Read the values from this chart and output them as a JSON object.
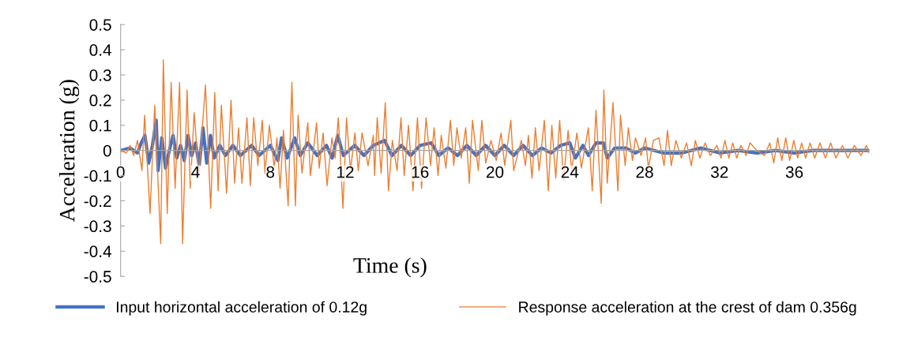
{
  "chart_data": {
    "type": "line",
    "xlabel": "Time (s)",
    "ylabel": "Acceleration (g)",
    "xlim": [
      0,
      40
    ],
    "xticks": [
      0,
      4,
      8,
      12,
      16,
      20,
      24,
      28,
      32,
      36
    ],
    "ylim": [
      -0.5,
      0.5
    ],
    "yticks": [
      -0.5,
      -0.4,
      -0.3,
      -0.2,
      -0.1,
      0,
      0.1,
      0.2,
      0.3,
      0.4,
      0.5
    ],
    "grid": false,
    "legend": "bottom",
    "line_style": "solid",
    "marker": "none",
    "series": [
      {
        "name": "Input horizontal acceleration of 0.12g",
        "color": "#4472c4",
        "x": [
          0,
          0.5,
          0.9,
          1.1,
          1.3,
          1.5,
          1.7,
          1.9,
          2.0,
          2.2,
          2.4,
          2.6,
          2.8,
          3.0,
          3.2,
          3.4,
          3.6,
          3.8,
          4.0,
          4.2,
          4.4,
          4.6,
          4.8,
          5.0,
          5.3,
          5.6,
          6,
          6.4,
          7,
          7.4,
          8,
          8.4,
          8.6,
          8.9,
          9.3,
          9.6,
          10,
          10.5,
          11,
          11.3,
          11.6,
          11.9,
          12.5,
          13,
          13.5,
          14.1,
          14.5,
          15,
          15.5,
          16,
          16.6,
          17,
          17.5,
          18,
          18.5,
          19,
          19.5,
          20,
          20.5,
          21,
          21.5,
          22,
          22.5,
          23,
          23.5,
          24,
          24.3,
          24.7,
          25,
          25.4,
          25.8,
          26.0,
          26.4,
          27,
          27.5,
          28,
          29,
          30,
          31,
          32,
          33,
          34,
          35,
          36,
          37,
          38,
          39,
          40
        ],
        "values": [
          0,
          0.01,
          -0.01,
          0.03,
          0.06,
          -0.05,
          0.02,
          0.12,
          -0.08,
          0.05,
          -0.07,
          0.0,
          0.06,
          -0.03,
          0.02,
          -0.04,
          0.06,
          -0.02,
          0.03,
          -0.06,
          0.09,
          -0.05,
          0.06,
          -0.03,
          0.02,
          -0.02,
          0.02,
          -0.02,
          0.02,
          -0.02,
          0.02,
          -0.04,
          0.05,
          -0.03,
          0.05,
          -0.02,
          0.03,
          -0.02,
          0.02,
          -0.03,
          0.06,
          -0.02,
          0.02,
          -0.02,
          0.02,
          0.04,
          -0.02,
          0.02,
          -0.02,
          0.02,
          0.03,
          -0.02,
          0.01,
          -0.02,
          0.02,
          -0.02,
          0.02,
          -0.02,
          0.02,
          -0.02,
          0.02,
          -0.02,
          0.01,
          -0.01,
          0.02,
          0.03,
          -0.03,
          0.02,
          -0.02,
          0.03,
          0.03,
          -0.03,
          0.01,
          0.01,
          -0.01,
          0.01,
          -0.01,
          -0.01,
          0.01,
          -0.01,
          0.0,
          -0.01,
          0.0,
          -0.01,
          0.0,
          0.0,
          0.0,
          0.0
        ]
      },
      {
        "name": "Response acceleration at the crest of dam 0.356g",
        "color": "#ed7d31",
        "x": [
          0,
          0.3,
          0.5,
          0.7,
          0.9,
          1.14,
          1.28,
          1.57,
          1.82,
          2.14,
          2.28,
          2.49,
          2.7,
          2.91,
          3.15,
          3.31,
          3.55,
          3.72,
          3.93,
          4.18,
          4.53,
          4.81,
          5.03,
          5.21,
          5.38,
          5.66,
          5.9,
          6.09,
          6.3,
          6.48,
          6.75,
          6.93,
          7.11,
          7.33,
          7.57,
          7.71,
          7.95,
          8.21,
          8.35,
          8.52,
          8.7,
          8.95,
          9.15,
          9.34,
          9.48,
          9.69,
          10.0,
          10.14,
          10.47,
          10.61,
          10.82,
          11.03,
          11.29,
          11.46,
          11.63,
          11.88,
          12.07,
          12.28,
          12.52,
          12.7,
          12.9,
          13.22,
          13.5,
          13.57,
          13.71,
          13.92,
          14.14,
          14.31,
          14.52,
          14.77,
          14.98,
          15.15,
          15.38,
          15.62,
          15.86,
          16.08,
          16.32,
          16.56,
          16.75,
          16.96,
          17.13,
          17.38,
          17.62,
          17.8,
          17.97,
          18.2,
          18.44,
          18.63,
          18.8,
          19.11,
          19.3,
          19.51,
          19.79,
          20.07,
          20.33,
          20.52,
          20.85,
          21.0,
          21.41,
          21.63,
          21.79,
          21.98,
          22.16,
          22.36,
          22.64,
          22.85,
          23.04,
          23.25,
          23.46,
          23.67,
          23.91,
          24.1,
          24.38,
          24.62,
          24.99,
          25.2,
          25.4,
          25.68,
          25.82,
          26.0,
          26.31,
          26.57,
          26.71,
          26.96,
          27.13,
          27.35,
          27.51,
          27.81,
          28.05,
          28.2,
          28.47,
          28.76,
          29.04,
          29.22,
          29.42,
          29.67,
          29.96,
          30.24,
          30.49,
          30.71,
          30.95,
          31.23,
          31.51,
          31.86,
          32.08,
          32.29,
          32.5,
          32.71,
          32.92,
          33.14,
          33.42,
          33.63,
          33.99,
          34.41,
          34.69,
          34.9,
          35.11,
          35.33,
          35.54,
          35.75,
          35.97,
          36.18,
          36.39,
          36.6,
          36.84,
          37.09,
          37.37,
          37.66,
          37.94,
          38.22,
          38.57,
          38.86,
          39.21,
          39.56,
          39.85,
          40.0
        ],
        "values": [
          0,
          -0.01,
          0.02,
          -0.02,
          0.04,
          -0.08,
          0.14,
          -0.25,
          0.18,
          -0.37,
          0.36,
          -0.25,
          0.27,
          -0.15,
          0.27,
          -0.37,
          0.24,
          -0.15,
          0.15,
          -0.1,
          0.26,
          -0.23,
          0.23,
          -0.16,
          0.18,
          -0.17,
          0.2,
          -0.13,
          0.09,
          -0.13,
          0.13,
          -0.14,
          0.13,
          -0.06,
          0.12,
          -0.09,
          0.1,
          -0.07,
          0.05,
          -0.15,
          0.08,
          -0.22,
          0.27,
          -0.22,
          0.14,
          -0.09,
          0.11,
          -0.1,
          0.11,
          -0.07,
          0.07,
          -0.14,
          0.05,
          -0.03,
          0.13,
          -0.23,
          0.13,
          -0.08,
          0.07,
          -0.08,
          0.07,
          -0.06,
          0.06,
          -0.1,
          0.13,
          -0.09,
          0.19,
          -0.16,
          0.04,
          -0.08,
          0.13,
          -0.1,
          0.1,
          -0.16,
          0.13,
          -0.15,
          0.13,
          -0.06,
          0.09,
          -0.1,
          0.06,
          -0.07,
          0.12,
          -0.06,
          0.09,
          -0.03,
          0.09,
          -0.13,
          0.12,
          -0.08,
          0.12,
          -0.05,
          0.04,
          -0.04,
          0.07,
          -0.06,
          0.12,
          -0.08,
          0.04,
          -0.06,
          0.06,
          -0.11,
          0.09,
          -0.08,
          0.12,
          -0.16,
          0.1,
          -0.11,
          0.12,
          -0.12,
          0.08,
          -0.08,
          0.07,
          -0.07,
          0.09,
          -0.16,
          0.16,
          -0.21,
          0.24,
          -0.13,
          0.19,
          -0.16,
          0.14,
          -0.06,
          0.09,
          -0.04,
          0.05,
          -0.02,
          0.05,
          -0.07,
          0.04,
          0.05,
          -0.06,
          0.08,
          -0.06,
          0.04,
          -0.03,
          0.03,
          -0.06,
          0.04,
          -0.03,
          0.03,
          -0.02,
          0.02,
          -0.03,
          0.04,
          -0.03,
          0.03,
          -0.03,
          0.02,
          -0.02,
          0.03,
          0.0,
          -0.02,
          0.03,
          -0.05,
          0.05,
          -0.04,
          0.05,
          -0.04,
          0.04,
          -0.03,
          0.03,
          -0.03,
          0.03,
          -0.03,
          0.03,
          -0.03,
          0.03,
          -0.03,
          0.02,
          -0.03,
          0.02,
          -0.02,
          0.02,
          -0.01
        ]
      }
    ]
  }
}
